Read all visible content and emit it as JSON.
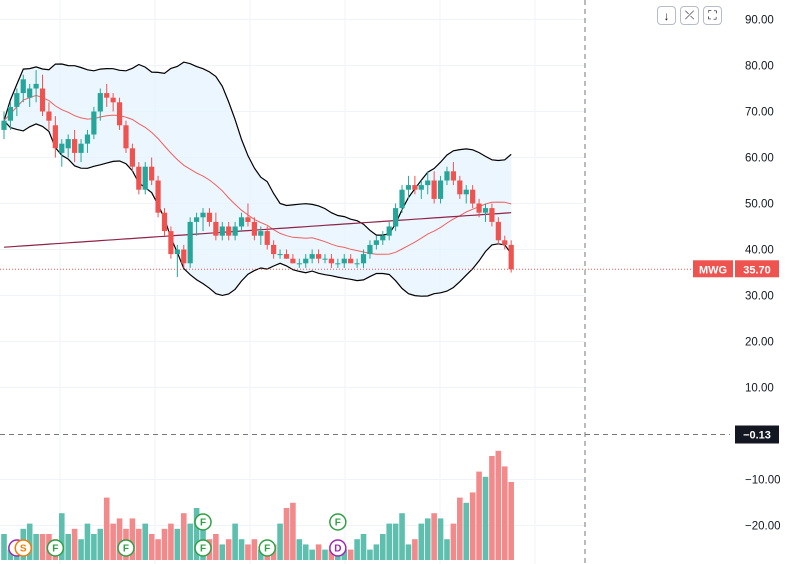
{
  "toolbar": {
    "icons": [
      "download-arrow-icon",
      "collapse-icon",
      "fullscreen-icon"
    ],
    "glyphs": [
      "↓",
      "⤫",
      "⛶"
    ]
  },
  "chart_data": {
    "type": "candlestick",
    "symbol": "MWG",
    "last_price": 35.7,
    "last_price_label": "35.70",
    "price_axis": {
      "ticks": [
        "90.00",
        "80.00",
        "70.00",
        "60.00",
        "50.00",
        "40.00",
        "30.00",
        "20.00",
        "10.00",
        "−10.00",
        "−20.00"
      ],
      "tick_values": [
        90,
        80,
        70,
        60,
        50,
        40,
        30,
        20,
        10,
        -10,
        -20
      ]
    },
    "oscillator_value_label": "−0.13",
    "oscillator_value": -0.13,
    "colors": {
      "up": "#26a69a",
      "down": "#ef5350",
      "band_line": "#000000",
      "band_fill": "#e3f2fd",
      "sma20": "#f06060",
      "sma200": "#8e2448",
      "volume_up": "#5fbfae",
      "volume_down": "#f28a8c",
      "price_line": "#ef5350",
      "crosshair": "#777777"
    },
    "candles": [
      [
        66,
        70,
        64,
        68
      ],
      [
        68,
        72,
        66,
        71
      ],
      [
        71,
        75,
        69,
        74
      ],
      [
        74,
        78,
        72,
        77
      ],
      [
        73,
        76,
        71,
        75
      ],
      [
        75,
        79,
        72,
        76
      ],
      [
        75,
        78,
        69,
        70
      ],
      [
        70,
        72,
        66,
        68
      ],
      [
        67,
        69,
        60,
        62
      ],
      [
        61,
        64,
        58,
        63
      ],
      [
        62,
        65,
        60,
        64
      ],
      [
        64,
        66,
        59,
        61
      ],
      [
        61,
        64,
        59,
        63
      ],
      [
        63,
        66,
        61,
        65
      ],
      [
        65,
        71,
        64,
        70
      ],
      [
        70,
        75,
        68,
        74
      ],
      [
        74,
        76,
        71,
        73
      ],
      [
        73,
        74,
        70,
        72
      ],
      [
        72,
        73,
        66,
        67
      ],
      [
        67,
        68,
        61,
        62
      ],
      [
        62,
        63,
        57,
        58
      ],
      [
        58,
        59,
        52,
        53
      ],
      [
        53,
        59,
        52,
        58
      ],
      [
        58,
        60,
        54,
        55
      ],
      [
        55,
        56,
        47,
        48
      ],
      [
        48,
        49,
        43,
        44
      ],
      [
        44,
        45,
        38,
        39
      ],
      [
        39,
        41,
        34,
        40
      ],
      [
        40,
        41,
        36,
        37
      ],
      [
        37,
        47,
        36,
        46
      ],
      [
        46,
        48,
        43,
        47
      ],
      [
        47,
        49,
        44,
        48
      ],
      [
        48,
        49,
        45,
        46
      ],
      [
        46,
        48,
        42,
        43
      ],
      [
        43,
        46,
        42,
        45
      ],
      [
        45,
        46,
        42,
        43
      ],
      [
        43,
        46,
        42,
        45
      ],
      [
        45,
        48,
        44,
        47
      ],
      [
        47,
        50,
        45,
        46
      ],
      [
        46,
        47,
        42,
        43
      ],
      [
        43,
        45,
        41,
        44
      ],
      [
        44,
        45,
        40,
        41
      ],
      [
        41,
        42,
        38,
        39
      ],
      [
        39,
        40,
        38,
        39
      ],
      [
        39,
        40,
        38,
        38
      ],
      [
        38,
        39,
        37,
        37
      ],
      [
        37,
        38,
        36,
        37
      ],
      [
        37,
        39,
        36,
        38
      ],
      [
        38,
        40,
        37,
        39
      ],
      [
        39,
        40,
        37,
        38
      ],
      [
        38,
        39,
        37,
        38
      ],
      [
        38,
        39,
        36,
        37
      ],
      [
        37,
        38,
        36,
        37
      ],
      [
        37,
        39,
        36,
        38
      ],
      [
        38,
        39,
        37,
        37
      ],
      [
        37,
        38,
        36,
        37
      ],
      [
        37,
        40,
        36,
        39
      ],
      [
        39,
        42,
        38,
        41
      ],
      [
        41,
        43,
        40,
        42
      ],
      [
        42,
        44,
        41,
        43
      ],
      [
        43,
        46,
        42,
        45
      ],
      [
        45,
        50,
        44,
        49
      ],
      [
        49,
        54,
        48,
        53
      ],
      [
        53,
        56,
        51,
        54
      ],
      [
        54,
        56,
        52,
        53
      ],
      [
        53,
        55,
        51,
        54
      ],
      [
        54,
        57,
        52,
        55
      ],
      [
        55,
        57,
        50,
        51
      ],
      [
        51,
        56,
        50,
        55
      ],
      [
        55,
        58,
        54,
        57
      ],
      [
        57,
        59,
        54,
        55
      ],
      [
        55,
        56,
        51,
        52
      ],
      [
        52,
        54,
        50,
        53
      ],
      [
        53,
        54,
        49,
        50
      ],
      [
        50,
        51,
        47,
        48
      ],
      [
        48,
        50,
        46,
        49
      ],
      [
        49,
        50,
        45,
        46
      ],
      [
        46,
        47,
        41,
        42
      ],
      [
        42,
        43,
        40,
        41
      ],
      [
        41,
        42,
        35,
        35.7
      ]
    ],
    "volume_osc": [
      -18,
      -21,
      -21,
      -17,
      -16,
      -18,
      -18,
      -18,
      -19,
      -14,
      -18,
      -17,
      -19,
      -16,
      -18,
      -17,
      -11,
      -16,
      -15,
      -17,
      -15,
      -17,
      -16,
      -18,
      -19,
      -17,
      -16,
      -17,
      -14,
      -16,
      -13,
      -15,
      -19,
      -18,
      -20,
      -19,
      -16,
      -19,
      -20,
      -19,
      -21,
      -20,
      -20,
      -16,
      -13,
      -12,
      -19,
      -20,
      -21,
      -20,
      -21,
      -21,
      -20,
      -21,
      -21,
      -19,
      -18,
      -21,
      -20,
      -18,
      -16,
      -16,
      -14,
      -20,
      -19,
      -16,
      -15,
      -14,
      -15,
      -19,
      -16,
      -11,
      -12,
      -10,
      -6,
      -7,
      -3,
      -2,
      -5,
      -8
    ],
    "volume_osc_axis": {
      "min": -23,
      "max": 1
    },
    "indicators": [
      "Bollinger Bands (20,2)",
      "SMA 20",
      "SMA 200"
    ],
    "events": [
      {
        "letter": "S",
        "at": 3,
        "color": "#f57c00",
        "row": 1
      },
      {
        "letter": "F",
        "at": 8,
        "color": "#2ea043",
        "row": 1
      },
      {
        "letter": "F",
        "at": 19,
        "color": "#2ea043",
        "row": 1
      },
      {
        "letter": "F",
        "at": 31,
        "color": "#2ea043",
        "row": 0
      },
      {
        "letter": "F",
        "at": 31,
        "color": "#2ea043",
        "row": 1
      },
      {
        "letter": "F",
        "at": 41,
        "color": "#2ea043",
        "row": 1
      },
      {
        "letter": "F",
        "at": 52,
        "color": "#2ea043",
        "row": 0
      },
      {
        "letter": "D",
        "at": 52,
        "color": "#9c27b0",
        "row": 1
      }
    ]
  }
}
